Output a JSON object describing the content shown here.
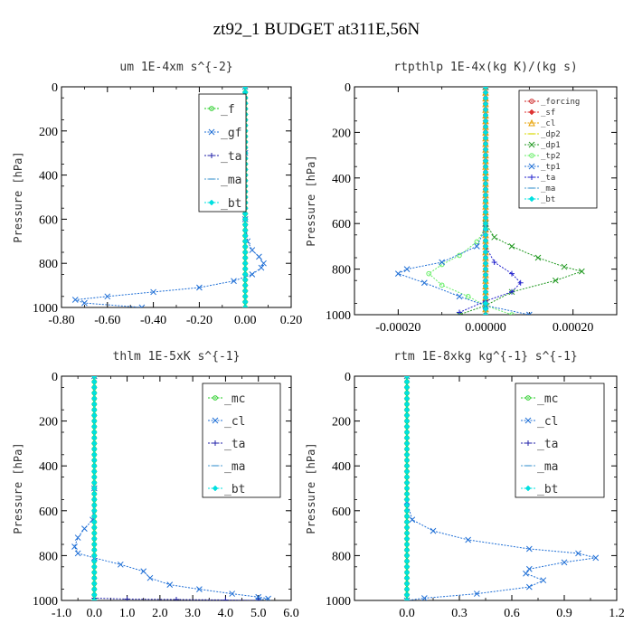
{
  "figure": {
    "title": "zt92_1  BUDGET at311E,56N"
  },
  "chart_data": [
    {
      "type": "line",
      "title": "um  1E-4xm s^{-2}",
      "ylabel": "Pressure [hPa]",
      "xlim": [
        -0.8,
        0.2
      ],
      "ylim": [
        1000,
        0
      ],
      "xticks": [
        -0.8,
        -0.6,
        -0.4,
        -0.2,
        0.0,
        0.2
      ],
      "xtick_labels": [
        "-0.80",
        "-0.60",
        "-0.40",
        "-0.20",
        "0.00",
        "0.20"
      ],
      "yticks": [
        0,
        200,
        400,
        600,
        800,
        1000
      ],
      "ytick_labels": [
        "0",
        "200",
        "400",
        "600",
        "800",
        "1000"
      ],
      "legend_position": "top-right",
      "series": [
        {
          "name": "_f",
          "color": "#22cc22",
          "marker": "circle",
          "x": [
            0,
            0,
            0,
            0,
            0,
            0
          ],
          "y": [
            0,
            200,
            400,
            600,
            800,
            1000
          ]
        },
        {
          "name": "_gf",
          "color": "#1f6fd6",
          "marker": "x",
          "x": [
            0.0,
            0.0,
            0.0,
            0.01,
            0.03,
            0.06,
            0.08,
            0.07,
            0.03,
            -0.05,
            -0.2,
            -0.4,
            -0.6,
            -0.74,
            -0.7,
            -0.45
          ],
          "y": [
            0,
            300,
            600,
            700,
            740,
            770,
            800,
            820,
            850,
            880,
            910,
            930,
            950,
            965,
            980,
            1000
          ]
        },
        {
          "name": "_ta",
          "color": "#2222aa",
          "marker": "plus",
          "x": [
            0,
            0,
            0
          ],
          "y": [
            0,
            500,
            1000
          ]
        },
        {
          "name": "_ma",
          "color": "#4b9cd3",
          "marker": "dash",
          "x": [
            0,
            0,
            0
          ],
          "y": [
            0,
            500,
            1000
          ]
        },
        {
          "name": "_bt",
          "color": "#00e0e0",
          "marker": "diamond",
          "x": [
            0,
            0,
            0
          ],
          "y": [
            0,
            500,
            1000
          ]
        }
      ]
    },
    {
      "type": "line",
      "title": "rtpthlp  1E-4x(kg K)/(kg s)",
      "ylabel": "Pressure [hPa]",
      "xlim": [
        -0.0003,
        0.0003
      ],
      "ylim": [
        1000,
        0
      ],
      "xticks": [
        -0.0002,
        0.0,
        0.0002
      ],
      "xtick_labels": [
        "-0.00020",
        "0.00000",
        "0.00020"
      ],
      "yticks": [
        0,
        200,
        400,
        600,
        800,
        1000
      ],
      "ytick_labels": [
        "0",
        "200",
        "400",
        "600",
        "800",
        "1000"
      ],
      "legend_position": "top-right",
      "legend_small": true,
      "series": [
        {
          "name": "_forcing",
          "color": "#cc2222",
          "marker": "circle",
          "x": [
            0,
            0,
            0
          ],
          "y": [
            0,
            500,
            1000
          ]
        },
        {
          "name": "_sf",
          "color": "#dd3333",
          "marker": "diamond",
          "x": [
            0,
            0,
            0
          ],
          "y": [
            0,
            500,
            1000
          ]
        },
        {
          "name": "_cl",
          "color": "#e8a000",
          "marker": "triangle",
          "x": [
            0,
            0,
            0
          ],
          "y": [
            0,
            500,
            1000
          ]
        },
        {
          "name": "_dp2",
          "color": "#d8d800",
          "marker": "dash",
          "x": [
            0,
            0,
            0
          ],
          "y": [
            0,
            500,
            1000
          ]
        },
        {
          "name": "_dp1",
          "color": "#229922",
          "marker": "x",
          "x": [
            0.0,
            0.0,
            2e-05,
            6e-05,
            0.00012,
            0.00018,
            0.00022,
            0.00016,
            6e-05,
            0.0,
            -6e-05
          ],
          "y": [
            0,
            600,
            660,
            700,
            750,
            790,
            810,
            850,
            900,
            960,
            1000
          ]
        },
        {
          "name": "_tp2",
          "color": "#66ee66",
          "marker": "circle",
          "x": [
            0.0,
            0.0,
            -2e-05,
            -6e-05,
            -0.0001,
            -0.00013,
            -0.0001,
            -4e-05,
            0.0,
            6e-05
          ],
          "y": [
            0,
            620,
            680,
            740,
            780,
            820,
            870,
            920,
            960,
            1000
          ]
        },
        {
          "name": "_tp1",
          "color": "#1f6fd6",
          "marker": "x",
          "x": [
            0.0,
            0.0,
            -2e-05,
            -0.0001,
            -0.00018,
            -0.0002,
            -0.00014,
            -6e-05,
            0.0,
            0.0001
          ],
          "y": [
            0,
            620,
            700,
            770,
            800,
            820,
            860,
            920,
            960,
            1000
          ]
        },
        {
          "name": "_ta",
          "color": "#2222cc",
          "marker": "plus",
          "x": [
            0.0,
            0.0,
            2e-05,
            6e-05,
            8e-05,
            6e-05,
            0.0,
            -6e-05
          ],
          "y": [
            0,
            700,
            770,
            820,
            860,
            900,
            940,
            990
          ]
        },
        {
          "name": "_ma",
          "color": "#4b9cd3",
          "marker": "dash",
          "x": [
            0,
            0,
            0
          ],
          "y": [
            0,
            500,
            1000
          ]
        },
        {
          "name": "_bt",
          "color": "#00e0e0",
          "marker": "diamond",
          "x": [
            0,
            0,
            0
          ],
          "y": [
            0,
            500,
            1000
          ]
        }
      ]
    },
    {
      "type": "line",
      "title": "thlm  1E-5xK s^{-1}",
      "ylabel": "Pressure [hPa]",
      "xlim": [
        -1.0,
        6.0
      ],
      "ylim": [
        1000,
        0
      ],
      "xticks": [
        -1.0,
        0.0,
        1.0,
        2.0,
        3.0,
        4.0,
        5.0,
        6.0
      ],
      "xtick_labels": [
        "-1.0",
        "0.0",
        "1.0",
        "2.0",
        "3.0",
        "4.0",
        "5.0",
        "6.0"
      ],
      "yticks": [
        0,
        200,
        400,
        600,
        800,
        1000
      ],
      "ytick_labels": [
        "0",
        "200",
        "400",
        "600",
        "800",
        "1000"
      ],
      "legend_position": "top-right",
      "series": [
        {
          "name": "_mc",
          "color": "#22cc22",
          "marker": "circle",
          "x": [
            0,
            0,
            0,
            0,
            0,
            0
          ],
          "y": [
            0,
            200,
            400,
            600,
            800,
            1000
          ]
        },
        {
          "name": "_cl",
          "color": "#1f6fd6",
          "marker": "x",
          "x": [
            0.0,
            0.0,
            -0.05,
            -0.3,
            -0.5,
            -0.6,
            -0.5,
            0.0,
            0.8,
            1.5,
            1.7,
            2.3,
            3.2,
            4.2,
            5.0,
            5.3,
            5.0
          ],
          "y": [
            0,
            500,
            640,
            680,
            720,
            760,
            790,
            810,
            840,
            870,
            900,
            930,
            950,
            970,
            985,
            992,
            1000
          ]
        },
        {
          "name": "_ta",
          "color": "#2222aa",
          "marker": "plus",
          "x": [
            0.0,
            0.0,
            0.0,
            1.0,
            2.5,
            4.0,
            5.0
          ],
          "y": [
            0,
            500,
            990,
            994,
            996,
            998,
            1000
          ]
        },
        {
          "name": "_ma",
          "color": "#4b9cd3",
          "marker": "dash",
          "x": [
            0,
            0,
            0
          ],
          "y": [
            0,
            500,
            1000
          ]
        },
        {
          "name": "_bt",
          "color": "#00e0e0",
          "marker": "diamond",
          "x": [
            0,
            0,
            0
          ],
          "y": [
            0,
            500,
            1000
          ]
        }
      ]
    },
    {
      "type": "line",
      "title": "rtm  1E-8xkg kg^{-1} s^{-1}",
      "ylabel": "Pressure [hPa]",
      "xlim": [
        -0.3,
        1.2
      ],
      "ylim": [
        1000,
        0
      ],
      "xticks": [
        0.0,
        0.3,
        0.6,
        0.9,
        1.2
      ],
      "xtick_labels": [
        "0.0",
        "0.3",
        "0.6",
        "0.9",
        "1.2"
      ],
      "yticks": [
        0,
        200,
        400,
        600,
        800,
        1000
      ],
      "ytick_labels": [
        "0",
        "200",
        "400",
        "600",
        "800",
        "1000"
      ],
      "legend_position": "top-right",
      "series": [
        {
          "name": "_mc",
          "color": "#22cc22",
          "marker": "circle",
          "x": [
            0,
            0,
            0,
            0,
            0,
            0
          ],
          "y": [
            0,
            200,
            400,
            600,
            800,
            1000
          ]
        },
        {
          "name": "_cl",
          "color": "#1f6fd6",
          "marker": "x",
          "x": [
            0.0,
            0.0,
            0.03,
            0.15,
            0.35,
            0.7,
            0.98,
            1.08,
            0.9,
            0.7,
            0.68,
            0.78,
            0.7,
            0.4,
            0.1,
            0.0
          ],
          "y": [
            0,
            560,
            640,
            690,
            730,
            770,
            790,
            810,
            830,
            860,
            880,
            910,
            940,
            970,
            990,
            1000
          ]
        },
        {
          "name": "_ta",
          "color": "#2222aa",
          "marker": "plus",
          "x": [
            0,
            0,
            0
          ],
          "y": [
            0,
            500,
            1000
          ]
        },
        {
          "name": "_ma",
          "color": "#4b9cd3",
          "marker": "dash",
          "x": [
            0,
            0,
            0
          ],
          "y": [
            0,
            500,
            1000
          ]
        },
        {
          "name": "_bt",
          "color": "#00e0e0",
          "marker": "diamond",
          "x": [
            0,
            0,
            0
          ],
          "y": [
            0,
            500,
            1000
          ]
        }
      ]
    }
  ]
}
